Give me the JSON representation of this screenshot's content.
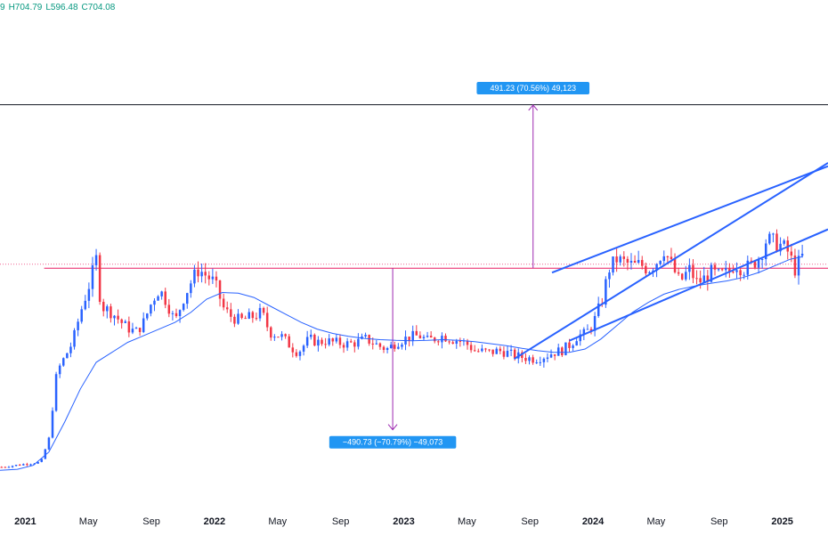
{
  "ohlc_readout": {
    "open_fragment": "9",
    "high": "H704.79",
    "low": "L596.48",
    "close": "C704.08"
  },
  "colors": {
    "up": "#089981",
    "down": "#f23645",
    "up_candle": "#2962ff",
    "down_candle": "#f23645",
    "ma": "#2962ff",
    "channel": "#2962ff",
    "measure": "#9c27b0",
    "tag_bg": "#2196f3",
    "resistance": "#e91e63",
    "black_line": "#131722"
  },
  "chart_data": {
    "type": "candlestick",
    "x_axis": {
      "ticks": [
        {
          "label": "2021",
          "month_index": 0,
          "bold": true
        },
        {
          "label": "May",
          "month_index": 4,
          "bold": false
        },
        {
          "label": "Sep",
          "month_index": 8,
          "bold": false
        },
        {
          "label": "2022",
          "month_index": 12,
          "bold": true
        },
        {
          "label": "May",
          "month_index": 16,
          "bold": false
        },
        {
          "label": "Sep",
          "month_index": 20,
          "bold": false
        },
        {
          "label": "2023",
          "month_index": 24,
          "bold": true
        },
        {
          "label": "May",
          "month_index": 28,
          "bold": false
        },
        {
          "label": "Sep",
          "month_index": 32,
          "bold": false
        },
        {
          "label": "2024",
          "month_index": 36,
          "bold": true
        },
        {
          "label": "May",
          "month_index": 40,
          "bold": false
        },
        {
          "label": "Sep",
          "month_index": 44,
          "bold": false
        },
        {
          "label": "2025",
          "month_index": 48,
          "bold": true
        }
      ],
      "range_months": [
        -1.6,
        50.9
      ]
    },
    "y_range": [
      0,
      1500
    ],
    "y_scale": "linear",
    "grid": false,
    "candle_period": "weekly",
    "candle_anchors": [
      [
        -1.5,
        95
      ],
      [
        1.0,
        110
      ],
      [
        1.5,
        180
      ],
      [
        2.0,
        380
      ],
      [
        3.0,
        470
      ],
      [
        3.5,
        560
      ],
      [
        4.1,
        650
      ],
      [
        4.5,
        720
      ],
      [
        4.8,
        580
      ],
      [
        5.5,
        560
      ],
      [
        6.3,
        520
      ],
      [
        7.0,
        500
      ],
      [
        7.5,
        530
      ],
      [
        8.1,
        600
      ],
      [
        8.5,
        630
      ],
      [
        9.0,
        590
      ],
      [
        9.5,
        530
      ],
      [
        10.0,
        600
      ],
      [
        10.6,
        660
      ],
      [
        11.0,
        690
      ],
      [
        12.0,
        650
      ],
      [
        12.6,
        570
      ],
      [
        13.0,
        550
      ],
      [
        13.6,
        535
      ],
      [
        14.3,
        545
      ],
      [
        15.0,
        560
      ],
      [
        15.5,
        500
      ],
      [
        16.2,
        490
      ],
      [
        17.0,
        450
      ],
      [
        17.3,
        440
      ],
      [
        18.0,
        480
      ],
      [
        18.6,
        470
      ],
      [
        19.0,
        475
      ],
      [
        19.5,
        470
      ],
      [
        20.5,
        465
      ],
      [
        21.0,
        470
      ],
      [
        21.6,
        480
      ],
      [
        22.0,
        470
      ],
      [
        22.6,
        455
      ],
      [
        23.0,
        450
      ],
      [
        23.5,
        470
      ],
      [
        24.3,
        485
      ],
      [
        25.0,
        490
      ],
      [
        25.5,
        475
      ],
      [
        26.5,
        490
      ],
      [
        27.0,
        480
      ],
      [
        27.6,
        475
      ],
      [
        28.0,
        465
      ],
      [
        28.5,
        445
      ],
      [
        29.5,
        440
      ],
      [
        30.0,
        445
      ],
      [
        30.5,
        440
      ],
      [
        31.0,
        430
      ],
      [
        31.6,
        425
      ],
      [
        32.3,
        420
      ],
      [
        33.0,
        430
      ],
      [
        33.5,
        440
      ],
      [
        34.0,
        445
      ],
      [
        34.6,
        465
      ],
      [
        35.0,
        490
      ],
      [
        35.5,
        495
      ],
      [
        36.0,
        525
      ],
      [
        36.6,
        600
      ],
      [
        37.0,
        690
      ],
      [
        37.5,
        720
      ],
      [
        38.0,
        710
      ],
      [
        38.6,
        700
      ],
      [
        39.0,
        705
      ],
      [
        39.5,
        690
      ],
      [
        40.0,
        710
      ],
      [
        40.5,
        750
      ],
      [
        41.0,
        700
      ],
      [
        41.5,
        650
      ],
      [
        42.1,
        690
      ],
      [
        42.6,
        650
      ],
      [
        43.0,
        660
      ],
      [
        43.5,
        680
      ],
      [
        44.0,
        670
      ],
      [
        44.6,
        680
      ],
      [
        45.0,
        710
      ],
      [
        45.5,
        690
      ],
      [
        46.0,
        700
      ],
      [
        46.6,
        730
      ],
      [
        47.0,
        780
      ],
      [
        47.5,
        770
      ],
      [
        48.0,
        760
      ],
      [
        48.4,
        740
      ],
      [
        48.8,
        690
      ],
      [
        49.3,
        730
      ]
    ],
    "moving_average": {
      "points": [
        [
          -1.6,
          85
        ],
        [
          -0.5,
          88
        ],
        [
          0.5,
          100
        ],
        [
          1.5,
          140
        ],
        [
          2.5,
          230
        ],
        [
          3.5,
          330
        ],
        [
          4.5,
          410
        ],
        [
          5.5,
          440
        ],
        [
          6.5,
          470
        ],
        [
          7.5,
          490
        ],
        [
          8.5,
          510
        ],
        [
          9.5,
          530
        ],
        [
          10.5,
          560
        ],
        [
          11.5,
          600
        ],
        [
          12.5,
          620
        ],
        [
          13.5,
          618
        ],
        [
          14.5,
          605
        ],
        [
          15.5,
          580
        ],
        [
          16.5,
          555
        ],
        [
          17.5,
          530
        ],
        [
          18.5,
          510
        ],
        [
          19.5,
          497
        ],
        [
          20.5,
          488
        ],
        [
          21.5,
          482
        ],
        [
          22.5,
          478
        ],
        [
          23.5,
          476
        ],
        [
          24.5,
          475
        ],
        [
          25.5,
          476
        ],
        [
          26.5,
          478
        ],
        [
          27.5,
          476
        ],
        [
          28.5,
          472
        ],
        [
          29.5,
          466
        ],
        [
          30.5,
          460
        ],
        [
          31.5,
          452
        ],
        [
          32.5,
          445
        ],
        [
          33.5,
          440
        ],
        [
          34.5,
          440
        ],
        [
          35.5,
          450
        ],
        [
          36.5,
          480
        ],
        [
          37.5,
          520
        ],
        [
          38.5,
          560
        ],
        [
          39.5,
          590
        ],
        [
          40.5,
          615
        ],
        [
          41.5,
          630
        ],
        [
          42.5,
          640
        ],
        [
          43.5,
          648
        ],
        [
          44.5,
          655
        ],
        [
          45.5,
          665
        ],
        [
          46.5,
          680
        ],
        [
          47.5,
          700
        ],
        [
          48.5,
          720
        ],
        [
          49.3,
          728
        ]
      ]
    },
    "measurements": [
      {
        "label": "−490.73 (−70.79%) −49,073",
        "from": [
          23.3,
          693
        ],
        "to": [
          23.3,
          207
        ]
      },
      {
        "label": "491.23 (70.56%) 49,123",
        "from": [
          32.2,
          693
        ],
        "to": [
          32.2,
          1184
        ]
      }
    ],
    "horizontal_lines": [
      {
        "y": 1185,
        "style": "solid",
        "color_key": "black_line"
      },
      {
        "y": 693,
        "style": "solid",
        "color_key": "resistance",
        "start_month": 1.2
      },
      {
        "y": 705,
        "style": "dotted",
        "color_key": "resistance"
      }
    ],
    "channel_lines": [
      {
        "from": [
          33.4,
          680
        ],
        "to": [
          50.9,
          1000
        ]
      },
      {
        "from": [
          34.5,
          475
        ],
        "to": [
          50.9,
          810
        ]
      },
      {
        "from": [
          31.0,
          420
        ],
        "to": [
          50.9,
          1010
        ],
        "comment_free": true
      }
    ]
  }
}
